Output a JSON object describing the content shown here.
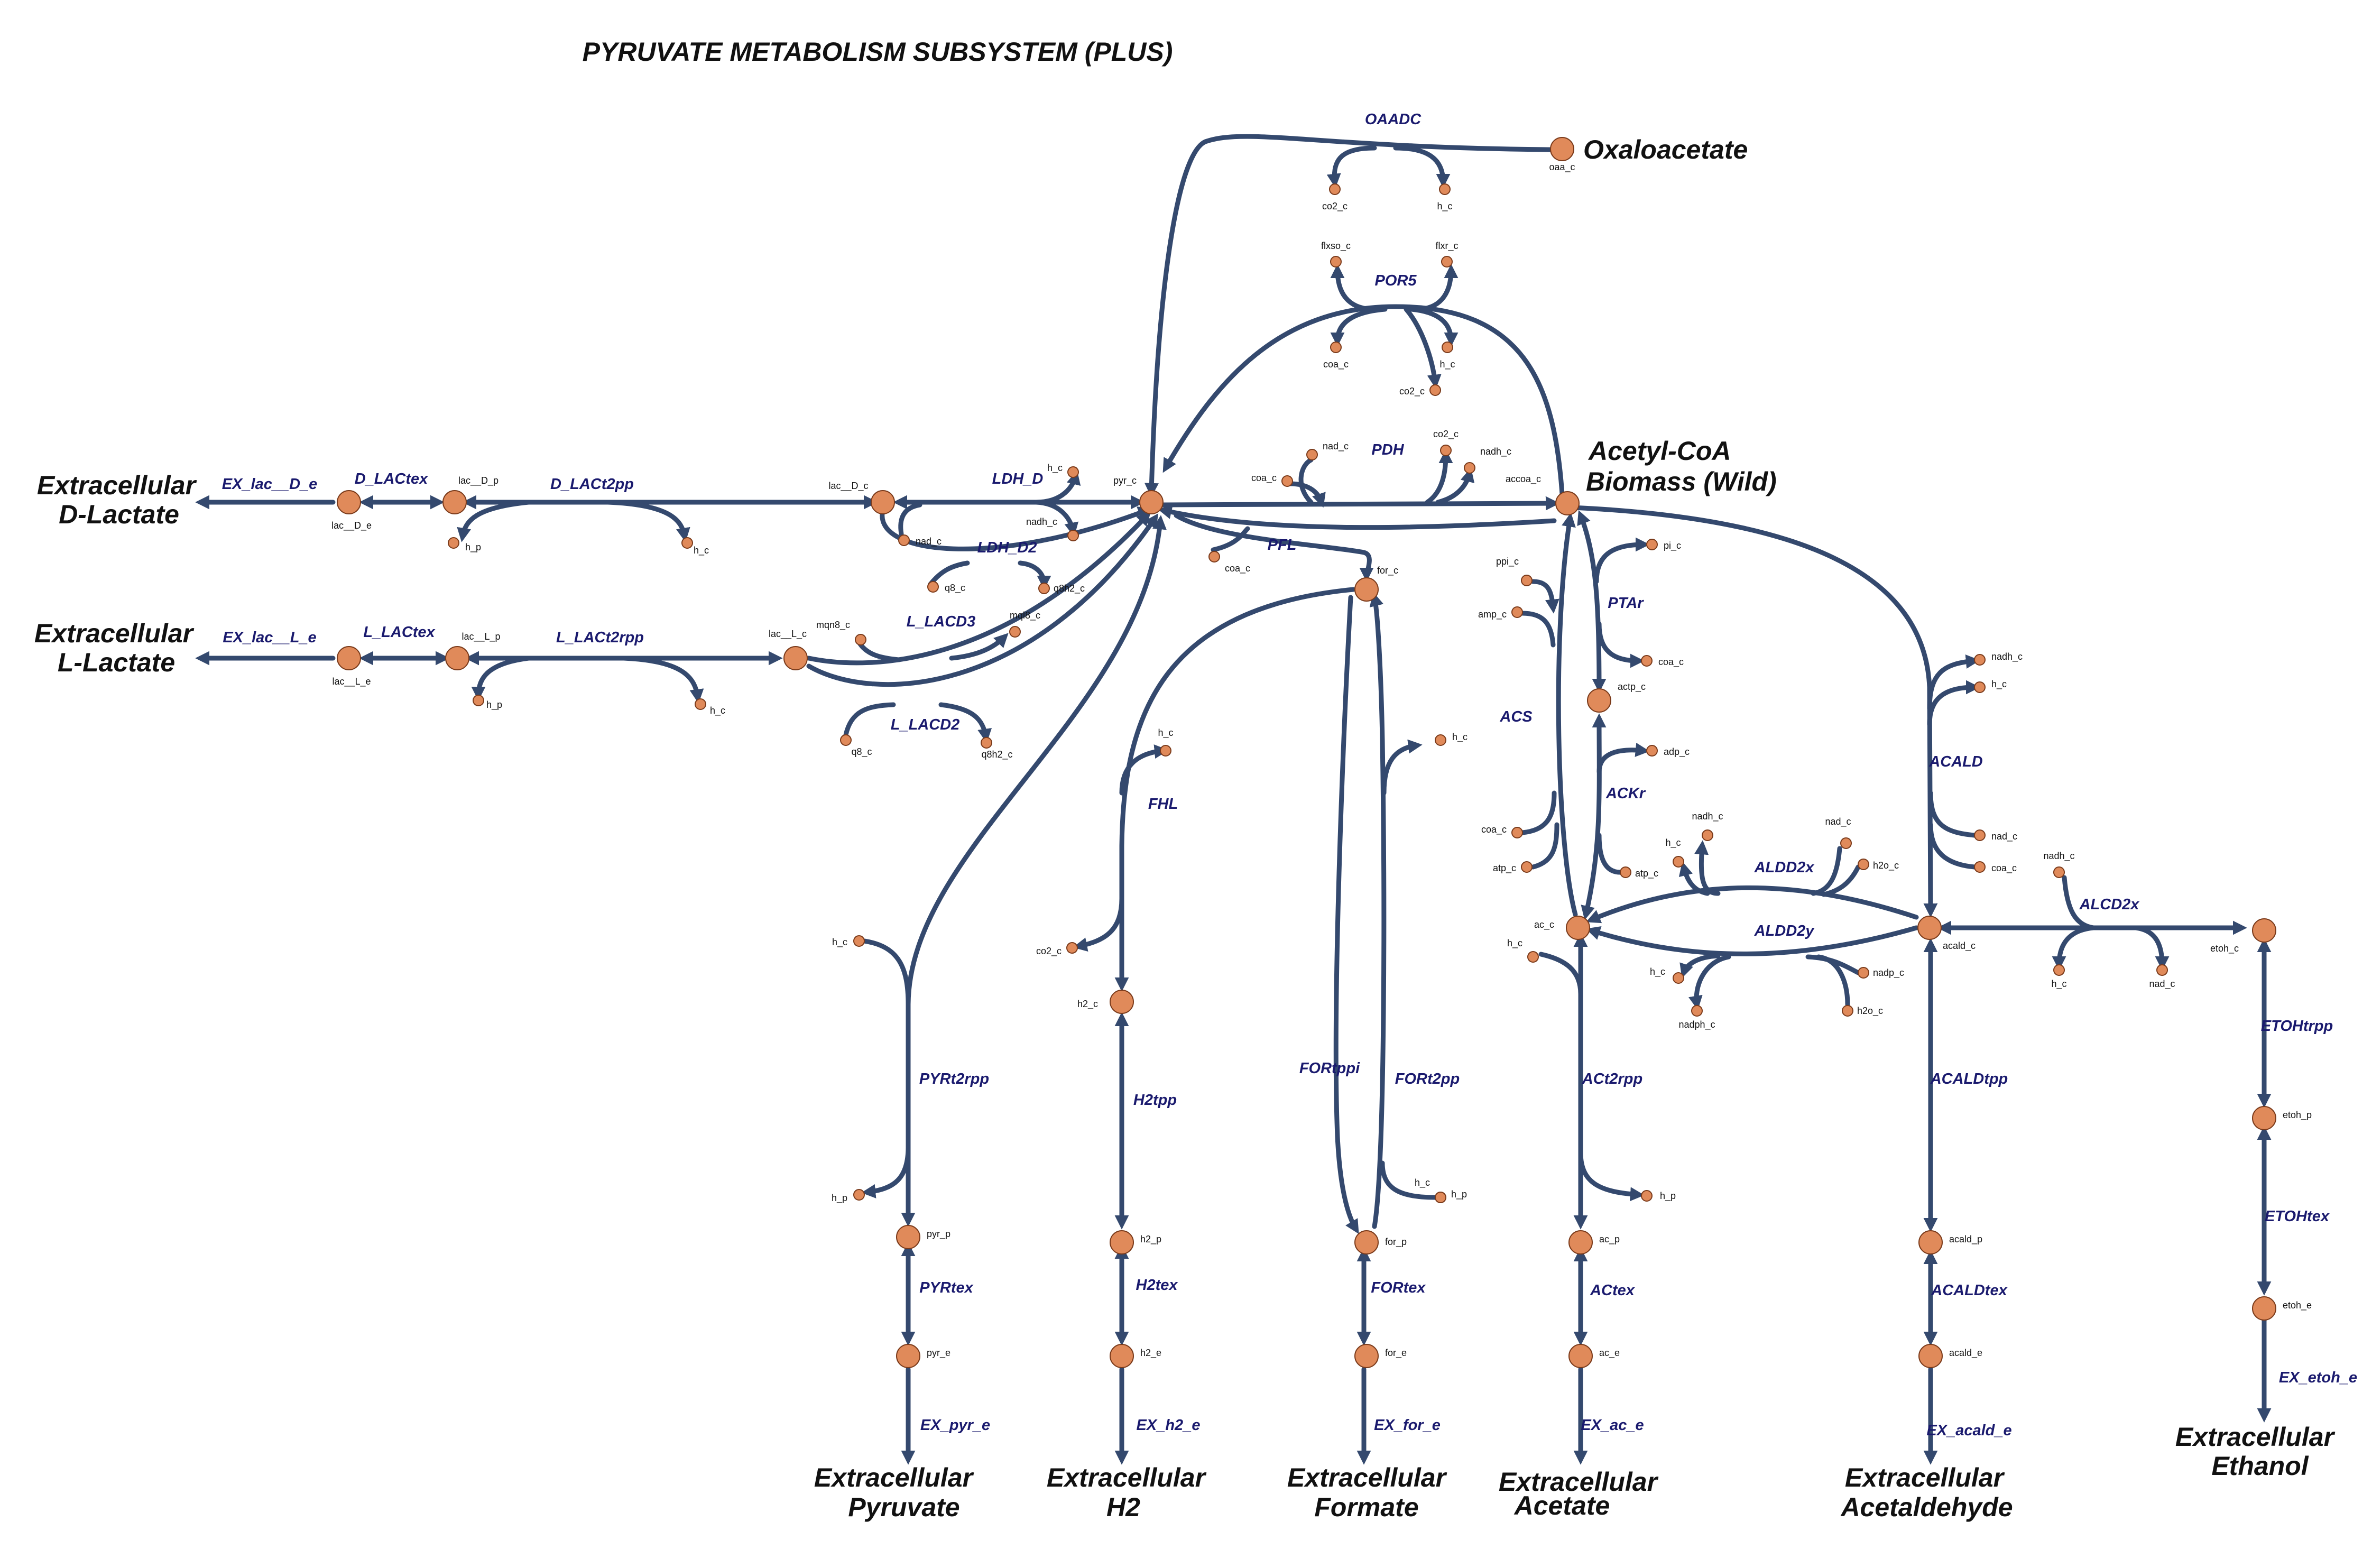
{
  "title": "PYRUVATE METABOLISM SUBSYSTEM (PLUS)",
  "colors": {
    "edge": "#34496e",
    "node": "#e08a5a",
    "node_stroke": "#7a3a1a",
    "reaction_label": "#1a1a6e"
  },
  "big_labels": [
    {
      "text": "Oxaloacetate"
    },
    {
      "text": "Acetyl-CoA"
    },
    {
      "text": "Biomass (Wild)"
    },
    {
      "text": "Extracellular"
    },
    {
      "text": "D-Lactate"
    },
    {
      "text": "Extracellular"
    },
    {
      "text": "L-Lactate"
    },
    {
      "text": "Extracellular"
    },
    {
      "text": "Pyruvate"
    },
    {
      "text": "Extracellular"
    },
    {
      "text": "H2"
    },
    {
      "text": "Extracellular"
    },
    {
      "text": "Formate"
    },
    {
      "text": "Extracellular"
    },
    {
      "text": "Acetate"
    },
    {
      "text": "Extracellular"
    },
    {
      "text": "Acetaldehyde"
    },
    {
      "text": "Extracellular"
    },
    {
      "text": "Ethanol"
    }
  ],
  "reactions": [
    {
      "id": "OAADC"
    },
    {
      "id": "POR5"
    },
    {
      "id": "PDH"
    },
    {
      "id": "PFL"
    },
    {
      "id": "LDH_D"
    },
    {
      "id": "LDH_D2"
    },
    {
      "id": "L_LACD3"
    },
    {
      "id": "L_LACD2"
    },
    {
      "id": "EX_lac__D_e"
    },
    {
      "id": "D_LACtex"
    },
    {
      "id": "D_LACt2pp"
    },
    {
      "id": "EX_lac__L_e"
    },
    {
      "id": "L_LACtex"
    },
    {
      "id": "L_LACt2rpp"
    },
    {
      "id": "PTAr"
    },
    {
      "id": "ACS"
    },
    {
      "id": "ACKr"
    },
    {
      "id": "ACALD"
    },
    {
      "id": "ALDD2x"
    },
    {
      "id": "ALDD2y"
    },
    {
      "id": "ALCD2x"
    },
    {
      "id": "FHL"
    },
    {
      "id": "PYRt2rpp"
    },
    {
      "id": "H2tpp"
    },
    {
      "id": "FORtppi"
    },
    {
      "id": "FORt2pp"
    },
    {
      "id": "ACt2rpp"
    },
    {
      "id": "ACALDtpp"
    },
    {
      "id": "ETOHtrpp"
    },
    {
      "id": "ETOHtex"
    },
    {
      "id": "PYRtex"
    },
    {
      "id": "H2tex"
    },
    {
      "id": "FORtex"
    },
    {
      "id": "ACtex"
    },
    {
      "id": "ACALDtex"
    },
    {
      "id": "EX_pyr_e"
    },
    {
      "id": "EX_h2_e"
    },
    {
      "id": "EX_for_e"
    },
    {
      "id": "EX_ac_e"
    },
    {
      "id": "EX_acald_e"
    },
    {
      "id": "EX_etoh_e"
    }
  ],
  "metabolites": [
    {
      "id": "oaa_c"
    },
    {
      "id": "co2_c"
    },
    {
      "id": "h_c"
    },
    {
      "id": "flxso_c"
    },
    {
      "id": "flxr_c"
    },
    {
      "id": "coa_c"
    },
    {
      "id": "h_c"
    },
    {
      "id": "co2_c"
    },
    {
      "id": "pyr_c"
    },
    {
      "id": "h_c"
    },
    {
      "id": "nadh_c"
    },
    {
      "id": "nad_c"
    },
    {
      "id": "q8_c"
    },
    {
      "id": "q8h2_c"
    },
    {
      "id": "lac__D_c"
    },
    {
      "id": "lac__D_p"
    },
    {
      "id": "h_p"
    },
    {
      "id": "h_c"
    },
    {
      "id": "lac__D_e"
    },
    {
      "id": "lac__L_c"
    },
    {
      "id": "lac__L_p"
    },
    {
      "id": "h_p"
    },
    {
      "id": "h_c"
    },
    {
      "id": "lac__L_e"
    },
    {
      "id": "mqn8_c"
    },
    {
      "id": "mql8_c"
    },
    {
      "id": "q8_c"
    },
    {
      "id": "q8h2_c"
    },
    {
      "id": "coa_c"
    },
    {
      "id": "nad_c"
    },
    {
      "id": "co2_c"
    },
    {
      "id": "nadh_c"
    },
    {
      "id": "accoa_c"
    },
    {
      "id": "coa_c"
    },
    {
      "id": "for_c"
    },
    {
      "id": "pi_c"
    },
    {
      "id": "coa_c"
    },
    {
      "id": "actp_c"
    },
    {
      "id": "adp_c"
    },
    {
      "id": "atp_c"
    },
    {
      "id": "ppi_c"
    },
    {
      "id": "amp_c"
    },
    {
      "id": "coa_c"
    },
    {
      "id": "atp_c"
    },
    {
      "id": "ac_c"
    },
    {
      "id": "h_c"
    },
    {
      "id": "nadh_c"
    },
    {
      "id": "h_c"
    },
    {
      "id": "nad_c"
    },
    {
      "id": "h2o_c"
    },
    {
      "id": "h_c"
    },
    {
      "id": "nadph_c"
    },
    {
      "id": "nadp_c"
    },
    {
      "id": "h2o_c"
    },
    {
      "id": "acald_c"
    },
    {
      "id": "nadh_c"
    },
    {
      "id": "h_c"
    },
    {
      "id": "nad_c"
    },
    {
      "id": "coa_c"
    },
    {
      "id": "nadh_c"
    },
    {
      "id": "h_c"
    },
    {
      "id": "nad_c"
    },
    {
      "id": "etoh_c"
    },
    {
      "id": "h_c"
    },
    {
      "id": "co2_c"
    },
    {
      "id": "h2_c"
    },
    {
      "id": "h_c"
    },
    {
      "id": "h_c"
    },
    {
      "id": "h_p"
    },
    {
      "id": "pyr_p"
    },
    {
      "id": "pyr_e"
    },
    {
      "id": "h2_p"
    },
    {
      "id": "h2_e"
    },
    {
      "id": "h_p"
    },
    {
      "id": "for_p"
    },
    {
      "id": "for_e"
    },
    {
      "id": "h_c"
    },
    {
      "id": "h_p"
    },
    {
      "id": "ac_p"
    },
    {
      "id": "ac_e"
    },
    {
      "id": "acald_p"
    },
    {
      "id": "acald_e"
    },
    {
      "id": "etoh_p"
    },
    {
      "id": "etoh_e"
    }
  ]
}
